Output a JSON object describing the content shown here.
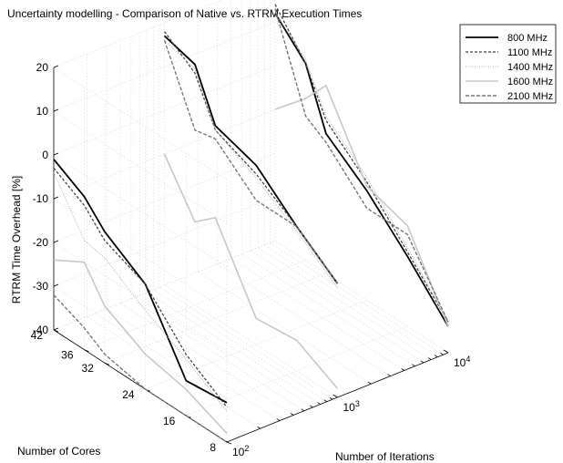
{
  "chart_data": {
    "type": "line",
    "title": "Uncertainty modelling - Comparison of Native vs. RTRM Execution Times",
    "zlabel": "RTRM Time Overhead [%]",
    "xlabel": "Number of Iterations",
    "ylabel": "Number of Cores",
    "x_axis": {
      "scale": "log",
      "ticks": [
        {
          "value": 100,
          "base": "10",
          "exp": "2"
        },
        {
          "value": 1000,
          "base": "10",
          "exp": "3"
        },
        {
          "value": 10000,
          "base": "10",
          "exp": "4"
        }
      ]
    },
    "y_axis": {
      "ticks": [
        "8",
        "16",
        "24",
        "32",
        "36",
        "42"
      ]
    },
    "z_axis": {
      "range": [
        -40,
        20
      ],
      "ticks": [
        "20",
        "10",
        "0",
        "-10",
        "-20",
        "-30",
        "-40"
      ]
    },
    "grid": true,
    "legend_position": "top-right",
    "cores": [
      42,
      36,
      32,
      24,
      16,
      8
    ],
    "iterations": [
      100,
      1000,
      10000
    ],
    "series": [
      {
        "name": "800 MHz",
        "color": "#000000",
        "dash": "",
        "width": 1.8,
        "values": {
          "100": [
            -1,
            -5,
            -10,
            -16,
            -32,
            -31
          ],
          "1000": [
            17,
            15,
            4,
            1,
            -7,
            -14
          ],
          "10000": [
            12,
            5,
            -8,
            -15,
            -24,
            -34
          ]
        }
      },
      {
        "name": "1100 MHz",
        "color": "#444444",
        "dash": "3 2",
        "width": 1.3,
        "values": {
          "100": [
            -3,
            -7,
            -12,
            -16,
            -26,
            -32
          ],
          "1000": [
            18,
            13,
            3,
            -1,
            -7,
            -14
          ],
          "10000": [
            14,
            5,
            -5,
            -13,
            -23,
            -33
          ]
        }
      },
      {
        "name": "1400 MHz",
        "color": "#b0b0b0",
        "dash": "1 1.5",
        "width": 1.0,
        "values": {
          "100": [
            -4,
            -15,
            -16,
            -22,
            -27,
            -33
          ],
          "1000": [
            16,
            14,
            3,
            -2,
            -8,
            -15
          ],
          "10000": [
            12,
            6,
            -4,
            -12,
            -22,
            -33
          ]
        }
      },
      {
        "name": "1600 MHz",
        "color": "#c8c8c8",
        "dash": "",
        "width": 1.6,
        "values": {
          "100": [
            -24,
            -20,
            -27,
            -32,
            -34,
            -38
          ],
          "1000": [
            -10,
            -21,
            -17,
            -34,
            -33,
            -38
          ],
          "10000": [
            -10,
            -3,
            3,
            -14,
            -17,
            -34
          ]
        }
      },
      {
        "name": "2100 MHz",
        "color": "#777777",
        "dash": "4 2",
        "width": 1.4,
        "values": {
          "100": [
            -32,
            -35,
            -38,
            -40,
            -40,
            -40
          ],
          "1000": [
            16,
            0,
            1,
            -7,
            -7,
            -14
          ],
          "10000": [
            13,
            -7,
            -10,
            -19,
            -19,
            -33
          ]
        }
      }
    ]
  }
}
